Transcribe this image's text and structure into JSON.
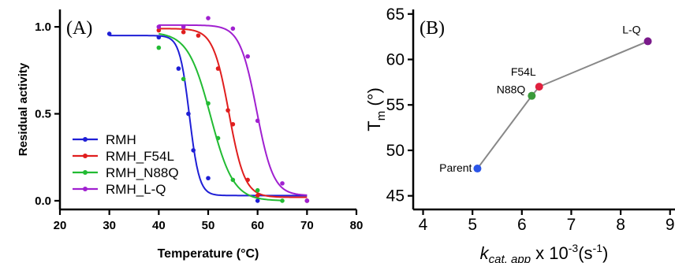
{
  "chart_data": [
    {
      "panel_label": "(A)",
      "type": "scatter",
      "xlabel": "Temperature (°C)",
      "ylabel": "Residual activity",
      "xlim": [
        20,
        80
      ],
      "ylim": [
        -0.05,
        1.1
      ],
      "xticks": [
        "20",
        "30",
        "40",
        "50",
        "60",
        "70",
        "80"
      ],
      "yticks": [
        "0.0",
        "0.5",
        "1.0"
      ],
      "grid": false,
      "legend_position": "bottom-left",
      "fit": "sigmoid",
      "series": [
        {
          "name": "RMH",
          "color": "#1f1fd6",
          "points": [
            [
              30,
              0.96
            ],
            [
              40,
              0.94
            ],
            [
              44,
              0.76
            ],
            [
              46,
              0.5
            ],
            [
              47,
              0.29
            ],
            [
              50,
              0.13
            ],
            [
              60,
              0.0
            ],
            [
              70,
              0.0
            ]
          ],
          "fit_params": {
            "top": 0.95,
            "bottom": 0.03,
            "tm": 46.2,
            "slope": 1.0
          }
        },
        {
          "name": "RMH_F54L",
          "color": "#e01e1e",
          "points": [
            [
              40,
              0.98
            ],
            [
              45,
              0.97
            ],
            [
              48,
              0.95
            ],
            [
              52,
              0.76
            ],
            [
              54,
              0.52
            ],
            [
              55,
              0.44
            ],
            [
              58,
              0.12
            ],
            [
              60,
              0.03
            ],
            [
              70,
              0.0
            ]
          ],
          "fit_params": {
            "top": 0.99,
            "bottom": 0.02,
            "tm": 54.2,
            "slope": 1.6
          }
        },
        {
          "name": "RMH_N88Q",
          "color": "#22bb33",
          "points": [
            [
              40,
              0.88
            ],
            [
              45,
              0.7
            ],
            [
              50,
              0.56
            ],
            [
              52,
              0.36
            ],
            [
              55,
              0.12
            ],
            [
              60,
              0.06
            ],
            [
              65,
              0.0
            ]
          ],
          "fit_params": {
            "top": 0.97,
            "bottom": 0.0,
            "tm": 50.5,
            "slope": 2.3
          }
        },
        {
          "name": "RMH_L-Q",
          "color": "#a020d0",
          "points": [
            [
              40,
              1.0
            ],
            [
              45,
              1.0
            ],
            [
              50,
              1.05
            ],
            [
              55,
              0.99
            ],
            [
              58,
              0.83
            ],
            [
              60,
              0.46
            ],
            [
              65,
              0.1
            ],
            [
              70,
              0.0
            ]
          ],
          "fit_params": {
            "top": 1.01,
            "bottom": 0.03,
            "tm": 59.8,
            "slope": 1.7
          }
        }
      ]
    },
    {
      "panel_label": "(B)",
      "type": "line",
      "xlabel_main": "k",
      "xlabel_sub": "cat, app",
      "xlabel_mid": " x 10",
      "xlabel_sup": "-3",
      "xlabel_end": "(s",
      "xlabel_sup2": "-1",
      "xlabel_close": ")",
      "ylabel_main": "T",
      "ylabel_sub": "m",
      "ylabel_end": " (°)",
      "xlim": [
        3.8,
        9.1
      ],
      "ylim": [
        43.5,
        65.5
      ],
      "xticks": [
        "4",
        "5",
        "6",
        "7",
        "8",
        "9"
      ],
      "yticks": [
        "45",
        "50",
        "55",
        "60",
        "65"
      ],
      "grid": false,
      "line_color": "#888888",
      "points": [
        {
          "label": "Parent",
          "x": 5.1,
          "y": 48.0,
          "color": "#2b55e8"
        },
        {
          "label": "N88Q",
          "x": 6.2,
          "y": 56.0,
          "color": "#3a9a3a"
        },
        {
          "label": "F54L",
          "x": 6.35,
          "y": 57.0,
          "color": "#e0203e"
        },
        {
          "label": "L-Q",
          "x": 8.55,
          "y": 62.0,
          "color": "#7a1a8a"
        }
      ]
    }
  ]
}
